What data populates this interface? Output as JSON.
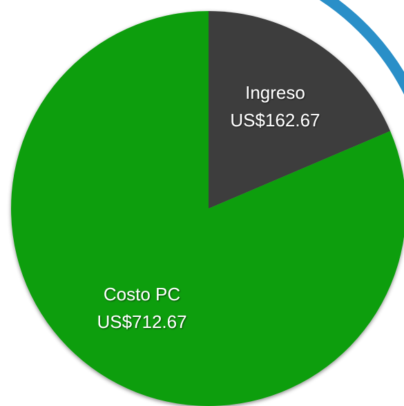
{
  "chart_data": {
    "type": "pie",
    "categories": [
      "Ingreso",
      "Costo PC"
    ],
    "values": [
      162.67,
      712.67
    ],
    "value_labels": [
      "US$162.67",
      "US$712.67"
    ],
    "colors": [
      "#3c3c3c",
      "#0b9e0b"
    ]
  }
}
